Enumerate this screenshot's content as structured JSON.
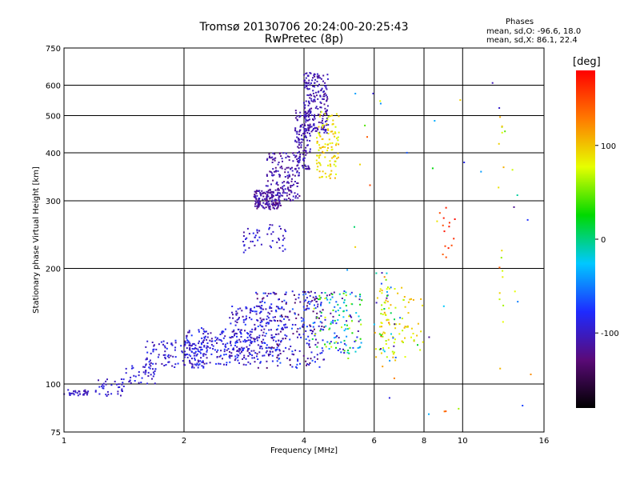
{
  "header": {
    "title_line1": "Tromsø 20130706 20:24:00-20:25:43",
    "title_line2": "RwPretec (8p)"
  },
  "stats": {
    "heading": "Phases",
    "o_mode": "mean, sd,O: -96.6, 18.0",
    "x_mode": "mean, sd,X:  86.1, 22.4"
  },
  "colorbar": {
    "unit": "[deg]",
    "ticks": [
      {
        "value": 100,
        "label": "100"
      },
      {
        "value": 0,
        "label": "0"
      },
      {
        "value": -100,
        "label": "-100"
      }
    ],
    "range": [
      -180,
      180
    ],
    "colors": [
      "#000000",
      "#5a0a78",
      "#1e2bff",
      "#00c8ff",
      "#00d900",
      "#e6ff00",
      "#ff7a00",
      "#ff0000"
    ]
  },
  "chart_data": {
    "type": "scatter",
    "title": "Tromsø 20130706 20:24:00-20:25:43",
    "subtitle": "RwPretec (8p)",
    "xlabel": "Frequency [MHz]",
    "ylabel": "Stationary phase Virtual Height [km]",
    "xscale": "log",
    "yscale": "log",
    "xlim": [
      1,
      16
    ],
    "ylim": [
      75,
      750
    ],
    "grid": true,
    "xticks": [
      {
        "value": 1,
        "label": "1"
      },
      {
        "value": 2,
        "label": "2"
      },
      {
        "value": 4,
        "label": "4"
      },
      {
        "value": 6,
        "label": "6"
      },
      {
        "value": 8,
        "label": "8"
      },
      {
        "value": 10,
        "label": "10"
      },
      {
        "value": 16,
        "label": "16"
      }
    ],
    "yticks": [
      {
        "value": 75,
        "label": "75"
      },
      {
        "value": 100,
        "label": "100"
      },
      {
        "value": 200,
        "label": "200"
      },
      {
        "value": 300,
        "label": "300"
      },
      {
        "value": 400,
        "label": "400"
      },
      {
        "value": 500,
        "label": "500"
      },
      {
        "value": 600,
        "label": "600"
      },
      {
        "value": 750,
        "label": "750"
      }
    ],
    "colorscale_label": "[deg]",
    "point_groups": [
      {
        "x_range": [
          1.0,
          1.15
        ],
        "y_range": [
          93,
          97
        ],
        "phase_range": [
          -110,
          -90
        ],
        "count": 30
      },
      {
        "x_range": [
          1.2,
          1.45
        ],
        "y_range": [
          93,
          103
        ],
        "phase_range": [
          -110,
          -85
        ],
        "count": 35
      },
      {
        "x_range": [
          1.4,
          1.7
        ],
        "y_range": [
          100,
          112
        ],
        "phase_range": [
          -110,
          -80
        ],
        "count": 40
      },
      {
        "x_range": [
          1.6,
          2.3
        ],
        "y_range": [
          110,
          130
        ],
        "phase_range": [
          -115,
          -75
        ],
        "count": 120
      },
      {
        "x_range": [
          2.0,
          3.0
        ],
        "y_range": [
          112,
          140
        ],
        "phase_range": [
          -115,
          -70
        ],
        "count": 200
      },
      {
        "x_range": [
          2.6,
          3.6
        ],
        "y_range": [
          118,
          160
        ],
        "phase_range": [
          -120,
          -70
        ],
        "count": 180
      },
      {
        "x_range": [
          3.0,
          4.5
        ],
        "y_range": [
          110,
          175
        ],
        "phase_range": [
          -140,
          -60
        ],
        "count": 260
      },
      {
        "x_range": [
          4.2,
          5.6
        ],
        "y_range": [
          120,
          175
        ],
        "phase_range": [
          -120,
          80
        ],
        "count": 140
      },
      {
        "x_range": [
          3.0,
          3.5
        ],
        "y_range": [
          285,
          320
        ],
        "phase_range": [
          -130,
          -100
        ],
        "count": 140
      },
      {
        "x_range": [
          3.2,
          3.9
        ],
        "y_range": [
          300,
          400
        ],
        "phase_range": [
          -125,
          -95
        ],
        "count": 160
      },
      {
        "x_range": [
          3.8,
          4.15
        ],
        "y_range": [
          360,
          520
        ],
        "phase_range": [
          -120,
          -95
        ],
        "count": 130
      },
      {
        "x_range": [
          4.0,
          4.6
        ],
        "y_range": [
          450,
          650
        ],
        "phase_range": [
          -120,
          -95
        ],
        "count": 200
      },
      {
        "x_range": [
          4.3,
          4.9
        ],
        "y_range": [
          340,
          520
        ],
        "phase_range": [
          70,
          110
        ],
        "count": 110
      },
      {
        "x_range": [
          2.8,
          3.6
        ],
        "y_range": [
          220,
          260
        ],
        "phase_range": [
          -115,
          -80
        ],
        "count": 50
      },
      {
        "x_range": [
          6.2,
          7.2
        ],
        "y_range": [
          115,
          180
        ],
        "phase_range": [
          60,
          110
        ],
        "count": 60
      },
      {
        "x_range": [
          6.0,
          6.8
        ],
        "y_range": [
          110,
          200
        ],
        "phase_range": [
          -120,
          150
        ],
        "count": 40
      },
      {
        "x_range": [
          7.0,
          8.0
        ],
        "y_range": [
          120,
          170
        ],
        "phase_range": [
          60,
          110
        ],
        "count": 25
      },
      {
        "x_range": [
          8.5,
          9.6
        ],
        "y_range": [
          210,
          290
        ],
        "phase_range": [
          140,
          175
        ],
        "count": 14
      },
      {
        "x_range": [
          12.3,
          12.7
        ],
        "y_range": [
          80,
          520
        ],
        "phase_range": [
          50,
          110
        ],
        "count": 16
      },
      {
        "x_range": [
          5.0,
          15.0
        ],
        "y_range": [
          80,
          620
        ],
        "phase_range": [
          -120,
          160
        ],
        "count": 45
      }
    ]
  }
}
